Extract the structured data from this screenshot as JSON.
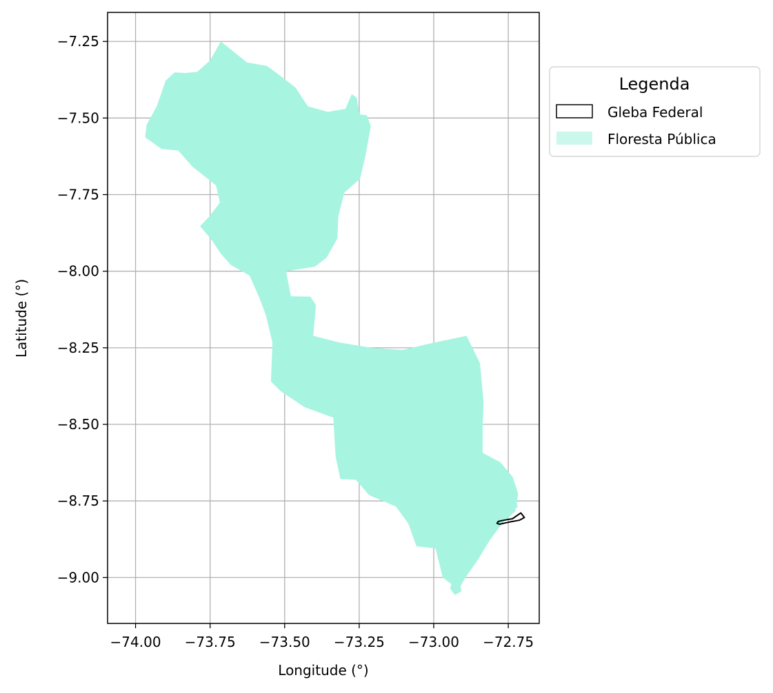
{
  "chart_data": {
    "type": "map",
    "xlabel": "Longitude (°)",
    "ylabel": "Latitude (°)",
    "xlim": [
      -74.0938,
      -72.6462
    ],
    "ylim": [
      -9.1498,
      -7.1552
    ],
    "grid": true,
    "xticks": [
      -74.0,
      -73.75,
      -73.5,
      -73.25,
      -73.0,
      -72.75
    ],
    "xtick_labels": [
      "−74.00",
      "−73.75",
      "−73.50",
      "−73.25",
      "−73.00",
      "−72.75"
    ],
    "yticks": [
      -7.25,
      -7.5,
      -7.75,
      -8.0,
      -8.25,
      -8.5,
      -8.75,
      -9.0
    ],
    "ytick_labels": [
      "−7.25",
      "−7.50",
      "−7.75",
      "−8.00",
      "−8.25",
      "−8.50",
      "−8.75",
      "−9.00"
    ],
    "legend": {
      "title": "Legenda",
      "placement": "outside upper right",
      "entries": [
        {
          "label": "Gleba Federal",
          "style": "outline",
          "color": "#000000"
        },
        {
          "label": "Floresta Pública",
          "style": "fill",
          "color": "#a7f4e0"
        }
      ]
    },
    "layers": [
      {
        "name": "Floresta Pública",
        "color": "#a7f4e0",
        "coords": [
          [
            -73.714,
            -7.25
          ],
          [
            -73.672,
            -7.283
          ],
          [
            -73.626,
            -7.319
          ],
          [
            -73.559,
            -7.33
          ],
          [
            -73.524,
            -7.355
          ],
          [
            -73.464,
            -7.4
          ],
          [
            -73.422,
            -7.462
          ],
          [
            -73.355,
            -7.48
          ],
          [
            -73.296,
            -7.47
          ],
          [
            -73.275,
            -7.422
          ],
          [
            -73.258,
            -7.434
          ],
          [
            -73.249,
            -7.488
          ],
          [
            -73.224,
            -7.491
          ],
          [
            -73.211,
            -7.527
          ],
          [
            -73.229,
            -7.623
          ],
          [
            -73.247,
            -7.698
          ],
          [
            -73.3,
            -7.744
          ],
          [
            -73.32,
            -7.821
          ],
          [
            -73.323,
            -7.893
          ],
          [
            -73.359,
            -7.955
          ],
          [
            -73.398,
            -7.985
          ],
          [
            -73.495,
            -8.0
          ],
          [
            -73.479,
            -8.082
          ],
          [
            -73.414,
            -8.083
          ],
          [
            -73.395,
            -8.11
          ],
          [
            -73.404,
            -8.211
          ],
          [
            -73.316,
            -8.233
          ],
          [
            -73.208,
            -8.25
          ],
          [
            -73.105,
            -8.257
          ],
          [
            -73.008,
            -8.235
          ],
          [
            -72.89,
            -8.211
          ],
          [
            -72.845,
            -8.3
          ],
          [
            -72.833,
            -8.424
          ],
          [
            -72.836,
            -8.515
          ],
          [
            -72.836,
            -8.593
          ],
          [
            -72.776,
            -8.624
          ],
          [
            -72.735,
            -8.672
          ],
          [
            -72.717,
            -8.727
          ],
          [
            -72.726,
            -8.783
          ],
          [
            -72.77,
            -8.823
          ],
          [
            -72.812,
            -8.878
          ],
          [
            -72.852,
            -8.942
          ],
          [
            -72.893,
            -8.999
          ],
          [
            -72.917,
            -9.039
          ],
          [
            -72.97,
            -9.0
          ],
          [
            -72.994,
            -8.905
          ],
          [
            -73.058,
            -8.898
          ],
          [
            -73.085,
            -8.824
          ],
          [
            -73.127,
            -8.768
          ],
          [
            -73.217,
            -8.731
          ],
          [
            -73.261,
            -8.681
          ],
          [
            -73.313,
            -8.678
          ],
          [
            -73.329,
            -8.605
          ],
          [
            -73.337,
            -8.478
          ],
          [
            -73.433,
            -8.444
          ],
          [
            -73.513,
            -8.392
          ],
          [
            -73.546,
            -8.36
          ],
          [
            -73.541,
            -8.233
          ],
          [
            -73.563,
            -8.143
          ],
          [
            -73.585,
            -8.086
          ],
          [
            -73.618,
            -8.014
          ],
          [
            -73.68,
            -7.98
          ],
          [
            -73.714,
            -7.943
          ],
          [
            -73.744,
            -7.899
          ],
          [
            -73.784,
            -7.853
          ],
          [
            -73.754,
            -7.823
          ],
          [
            -73.717,
            -7.776
          ],
          [
            -73.73,
            -7.72
          ],
          [
            -73.809,
            -7.659
          ],
          [
            -73.857,
            -7.606
          ],
          [
            -73.913,
            -7.601
          ],
          [
            -73.968,
            -7.563
          ],
          [
            -73.963,
            -7.522
          ],
          [
            -73.929,
            -7.462
          ],
          [
            -73.899,
            -7.378
          ],
          [
            -73.869,
            -7.351
          ],
          [
            -73.833,
            -7.353
          ],
          [
            -73.793,
            -7.349
          ],
          [
            -73.75,
            -7.312
          ]
        ]
      },
      {
        "name": "Floresta Pública (south lobe)",
        "color": "#a7f4e0",
        "coords": [
          [
            -72.871,
            -8.611
          ],
          [
            -72.846,
            -8.608
          ],
          [
            -72.818,
            -8.632
          ],
          [
            -72.793,
            -8.665
          ],
          [
            -72.774,
            -8.706
          ],
          [
            -72.755,
            -8.744
          ],
          [
            -72.737,
            -8.766
          ],
          [
            -72.718,
            -8.773
          ],
          [
            -72.726,
            -8.742
          ],
          [
            -72.748,
            -8.707
          ],
          [
            -72.771,
            -8.664
          ],
          [
            -72.807,
            -8.629
          ]
        ]
      },
      {
        "name": "Floresta Pública (islet)",
        "color": "#a7f4e0",
        "coords": [
          [
            -72.937,
            -9.008
          ],
          [
            -72.913,
            -9.012
          ],
          [
            -72.907,
            -9.045
          ],
          [
            -72.929,
            -9.057
          ],
          [
            -72.945,
            -9.036
          ]
        ]
      },
      {
        "name": "Gleba Federal",
        "outline": "#000000",
        "coords": [
          [
            -72.788,
            -8.823
          ],
          [
            -72.784,
            -8.817
          ],
          [
            -72.771,
            -8.814
          ],
          [
            -72.754,
            -8.811
          ],
          [
            -72.736,
            -8.808
          ],
          [
            -72.708,
            -8.789
          ],
          [
            -72.696,
            -8.804
          ],
          [
            -72.713,
            -8.813
          ],
          [
            -72.741,
            -8.818
          ],
          [
            -72.761,
            -8.822
          ],
          [
            -72.779,
            -8.826
          ]
        ]
      }
    ]
  }
}
